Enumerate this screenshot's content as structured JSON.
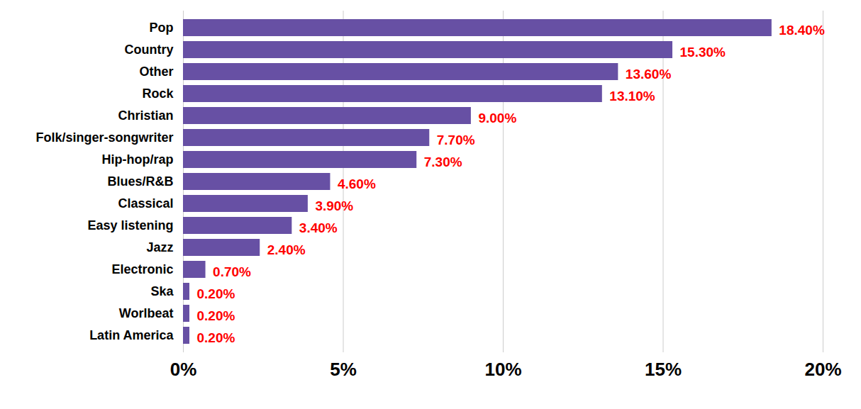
{
  "chart_data": {
    "type": "bar",
    "orientation": "horizontal",
    "categories": [
      "Pop",
      "Country",
      "Other",
      "Rock",
      "Christian",
      "Folk/singer-songwriter",
      "Hip-hop/rap",
      "Blues/R&B",
      "Classical",
      "Easy listening",
      "Jazz",
      "Electronic",
      "Ska",
      "Worlbeat",
      "Latin America"
    ],
    "values": [
      18.4,
      15.3,
      13.6,
      13.1,
      9.0,
      7.7,
      7.3,
      4.6,
      3.9,
      3.4,
      2.4,
      0.7,
      0.2,
      0.2,
      0.2
    ],
    "value_labels": [
      "18.40%",
      "15.30%",
      "13.60%",
      "13.10%",
      "9.00%",
      "7.70%",
      "7.30%",
      "4.60%",
      "3.90%",
      "3.40%",
      "2.40%",
      "0.70%",
      "0.20%",
      "0.20%",
      "0.20%"
    ],
    "color": "#6750a4",
    "data_labels": true,
    "xlim": [
      0,
      20
    ],
    "xticks": [
      {
        "value": 0,
        "label": "0%"
      },
      {
        "value": 5,
        "label": "5%"
      },
      {
        "value": 10,
        "label": "10%"
      },
      {
        "value": 15,
        "label": "15%"
      },
      {
        "value": 20,
        "label": "20%"
      }
    ],
    "grid": true
  }
}
